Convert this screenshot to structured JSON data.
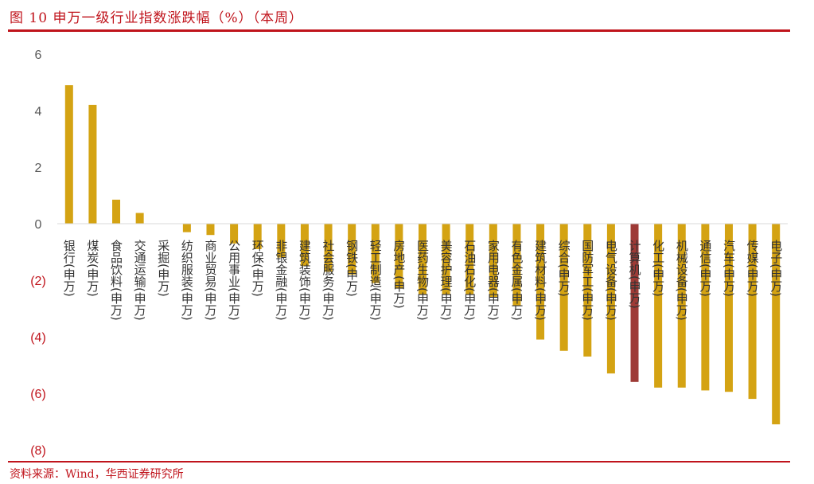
{
  "header": {
    "title": "图 10   申万一级行业指数涨跌幅（%）（本周）"
  },
  "footer": {
    "source": "资料来源：Wind，华西证券研究所"
  },
  "chart_data": {
    "type": "bar",
    "title": "图 10   申万一级行业指数涨跌幅（%）（本周）",
    "ylim": [
      -8,
      6
    ],
    "yticks": [
      6,
      4,
      2,
      0,
      -2,
      -4,
      -6,
      -8
    ],
    "ytick_labels": [
      "6",
      "4",
      "2",
      "0",
      "(2)",
      "(4)",
      "(6)",
      "(8)"
    ],
    "grid": false,
    "legend": "none",
    "colors": {
      "bar": "#d4a313",
      "highlight": "#9e3a36",
      "axis": "#d9d9d9",
      "positive_tick": "#595959",
      "negative_tick": "#c0141c"
    },
    "highlight_index": 24,
    "categories": [
      "银行(申万)",
      "煤炭(申万)",
      "食品饮料(申万)",
      "交通运输(申万)",
      "采掘(申万)",
      "纺织服装(申万)",
      "商业贸易(申万)",
      "公用事业(申万)",
      "环保(申万)",
      "非银金融(申万)",
      "建筑装饰(申万)",
      "社会服务(申万)",
      "钢铁(申万)",
      "轻工制造(申万)",
      "房地产(申万)",
      "医药生物(申万)",
      "美容护理(申万)",
      "石油石化(申万)",
      "家用电器(申万)",
      "有色金属(申万)",
      "建筑材料(申万)",
      "综合(申万)",
      "国防军工(申万)",
      "电气设备(申万)",
      "计算机(申万)",
      "化工(申万)",
      "机械设备(申万)",
      "通信(申万)",
      "汽车(申万)",
      "传媒(申万)",
      "电子(申万)"
    ],
    "values": [
      4.9,
      4.2,
      0.85,
      0.38,
      0.0,
      -0.3,
      -0.4,
      -0.7,
      -0.9,
      -1.2,
      -1.5,
      -1.7,
      -1.8,
      -2.1,
      -2.3,
      -2.5,
      -2.5,
      -2.5,
      -2.6,
      -2.9,
      -4.1,
      -4.5,
      -4.7,
      -5.3,
      -5.6,
      -5.8,
      -5.8,
      -5.9,
      -5.95,
      -6.2,
      -7.1
    ]
  }
}
